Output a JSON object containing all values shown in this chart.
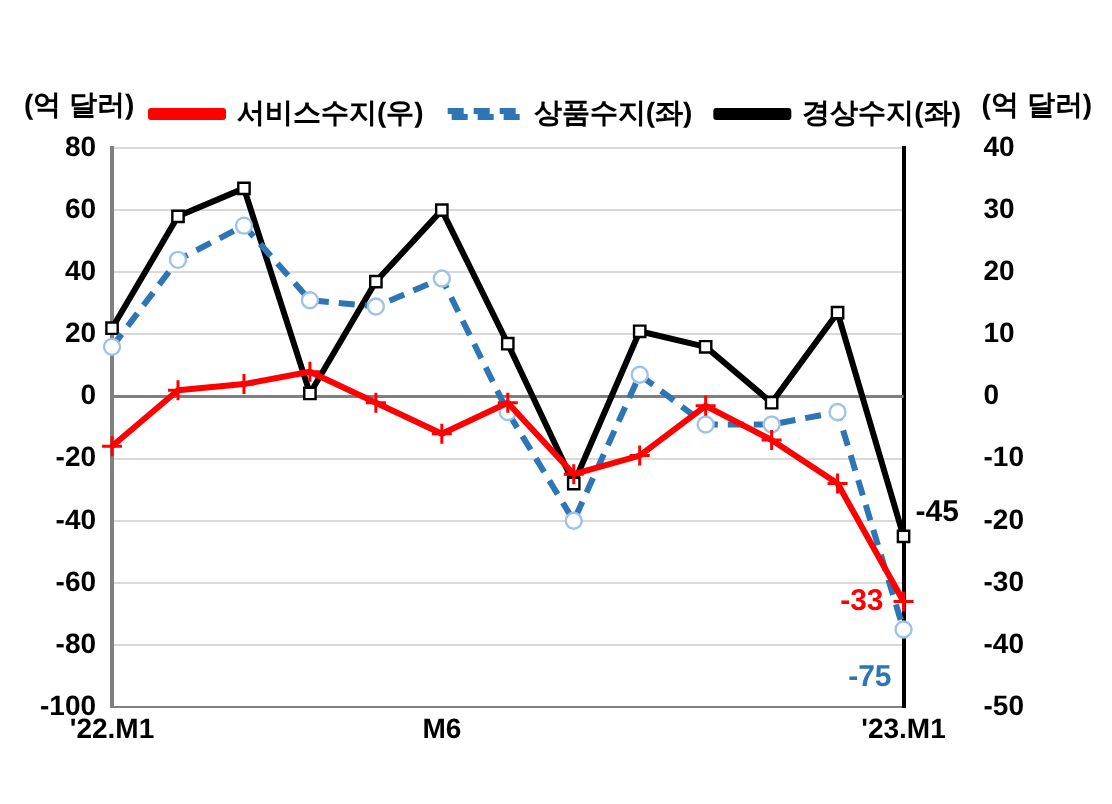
{
  "chart_data": {
    "type": "line",
    "ylabel": "(억 달러)",
    "y2label": "(억 달러)",
    "categories": [
      "'22.M1",
      null,
      null,
      null,
      null,
      "M6",
      null,
      null,
      null,
      null,
      null,
      null,
      "'23.M1"
    ],
    "series": [
      {
        "name": "경상수지(좌)",
        "color": "#000000",
        "marker": "square",
        "line_style": "solid",
        "values": [
          22,
          58,
          67,
          1,
          37,
          60,
          17,
          -28,
          21,
          16,
          -2,
          27,
          -45
        ],
        "value_labels": [
          null,
          null,
          null,
          null,
          null,
          null,
          null,
          null,
          null,
          null,
          null,
          null,
          "-45"
        ]
      },
      {
        "name": "상품수지(좌)",
        "color": "#2e75b6",
        "marker": "circle",
        "line_style": "dashed",
        "values": [
          16,
          44,
          55,
          31,
          29,
          38,
          -5,
          -40,
          7,
          -9,
          -9,
          -5,
          -75
        ],
        "value_labels": [
          null,
          null,
          null,
          null,
          null,
          null,
          null,
          null,
          null,
          null,
          null,
          null,
          "-75"
        ]
      },
      {
        "name": "서비스수지(우)",
        "color": "#ff0000",
        "marker": "cross",
        "line_style": "solid",
        "axis": "y2",
        "values": [
          -8,
          1,
          2,
          4,
          -1,
          -6,
          -1,
          -12.5,
          -9.5,
          -1.5,
          -7,
          -14,
          -33
        ],
        "value_labels": [
          null,
          null,
          null,
          null,
          null,
          null,
          null,
          null,
          null,
          null,
          null,
          null,
          "-33"
        ]
      }
    ],
    "ylim": [
      -100,
      80
    ],
    "yticks": [
      -100,
      -80,
      -60,
      -40,
      -20,
      0,
      20,
      40,
      60,
      80
    ],
    "y2lim": [
      -50,
      40
    ],
    "y2ticks": [
      -50,
      -40,
      -30,
      -20,
      -10,
      0,
      10,
      20,
      30,
      40
    ],
    "ref_lines": [
      {
        "axis": "y",
        "value": 0,
        "color": "#7f7f7f"
      }
    ],
    "grid": "y",
    "legend": "top"
  }
}
